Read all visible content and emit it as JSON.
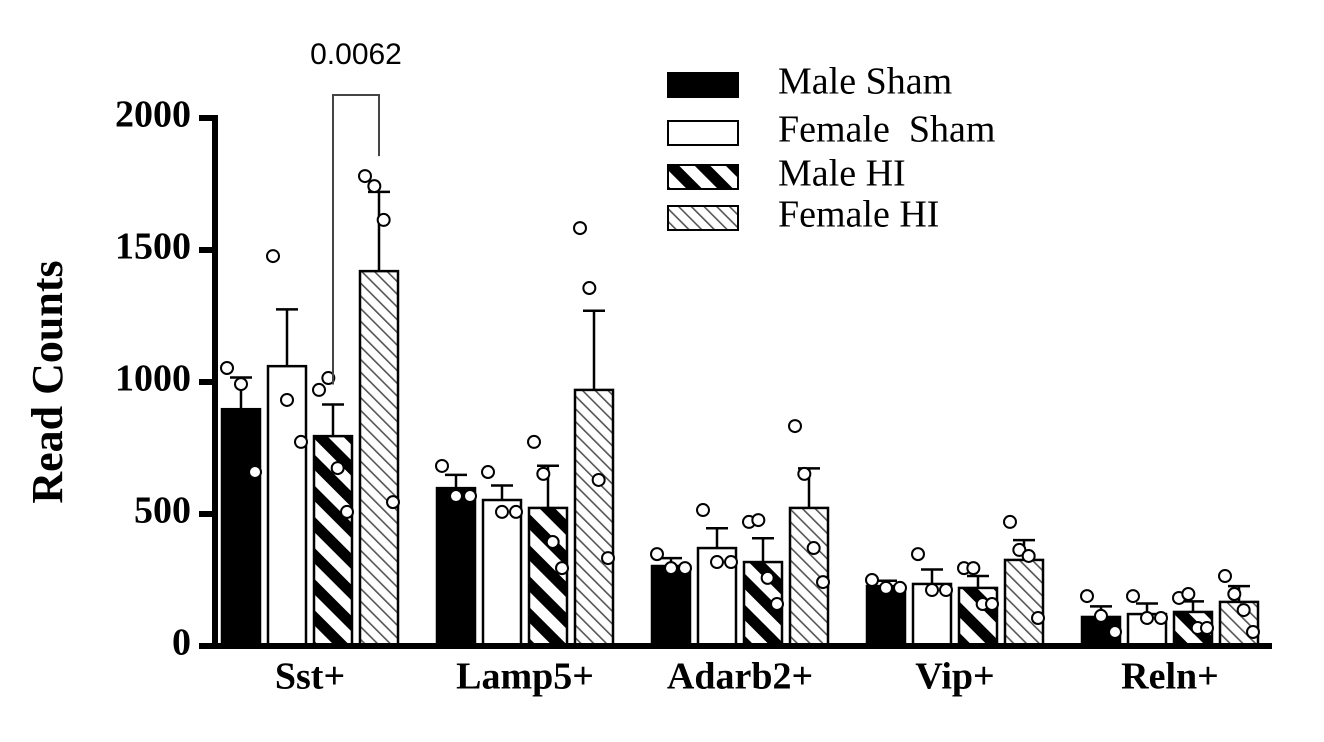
{
  "chart_data": {
    "type": "bar",
    "ylabel": "Read Counts",
    "categories": [
      "Sst+",
      "Lamp5+",
      "Adarb2+",
      "Vip+",
      "Reln+"
    ],
    "ylim": [
      0,
      2000
    ],
    "yticks": [
      0,
      500,
      1000,
      1500,
      2000
    ],
    "annotations": [
      {
        "text": "0.0062",
        "category": 0,
        "from_series": 2,
        "to_series": 3
      }
    ],
    "series": [
      {
        "name": "Male Sham",
        "color": "#000000",
        "values": [
          897,
          598,
          303,
          227,
          110
        ],
        "errors": [
          120,
          50,
          30,
          20,
          40
        ],
        "points": [
          [
            1053,
            992,
            659
          ],
          [
            682,
            568,
            568
          ],
          [
            348,
            295,
            295
          ],
          [
            250,
            220,
            220
          ],
          [
            189,
            114,
            53
          ]
        ]
      },
      {
        "name": "Female  Sham",
        "color": "#ffffff",
        "values": [
          1060,
          553,
          371,
          235,
          121
        ],
        "errors": [
          215,
          55,
          75,
          55,
          40
        ],
        "points": [
          [
            1477,
            932,
            773
          ],
          [
            659,
            508,
            508
          ],
          [
            515,
            318,
            318
          ],
          [
            348,
            212,
            212
          ],
          [
            189,
            106,
            106
          ]
        ]
      },
      {
        "name": "Male HI",
        "color": "#000000",
        "hatch": "wide",
        "values": [
          795,
          523,
          318,
          220,
          129
        ],
        "errors": [
          120,
          160,
          90,
          45,
          40
        ],
        "points": [
          [
            970,
            1015,
            674,
            508
          ],
          [
            773,
            652,
            394,
            295
          ],
          [
            470,
            477,
            258,
            159
          ],
          [
            295,
            295,
            159,
            159
          ],
          [
            182,
            197,
            68,
            68
          ]
        ]
      },
      {
        "name": "Female HI",
        "color": "#808080",
        "hatch": "fine",
        "values": [
          1420,
          970,
          523,
          326,
          167
        ],
        "errors": [
          300,
          300,
          150,
          75,
          60
        ],
        "points": [
          [
            1780,
            1742,
            1614,
            545
          ],
          [
            1583,
            1356,
            629,
            333
          ],
          [
            833,
            652,
            371,
            242
          ],
          [
            470,
            364,
            341,
            106
          ],
          [
            265,
            197,
            136,
            53
          ]
        ]
      }
    ]
  }
}
